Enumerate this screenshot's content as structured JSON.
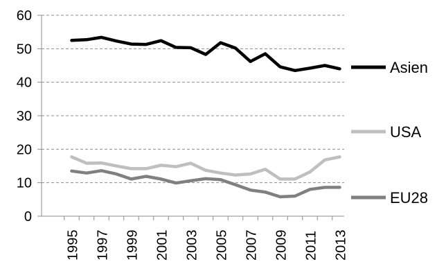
{
  "chart_data": {
    "type": "line",
    "title": "",
    "xlabel": "",
    "ylabel": "",
    "x": [
      1995,
      1996,
      1997,
      1998,
      1999,
      2000,
      2001,
      2002,
      2003,
      2004,
      2005,
      2006,
      2007,
      2008,
      2009,
      2010,
      2011,
      2012,
      2013
    ],
    "x_tick_labels": [
      "1995",
      "1997",
      "1999",
      "2001",
      "2003",
      "2005",
      "2007",
      "2009",
      "2011",
      "2013"
    ],
    "y_tick_labels": [
      "0",
      "10",
      "20",
      "30",
      "40",
      "50",
      "60"
    ],
    "ylim": [
      0,
      60
    ],
    "grid": "horizontal dashed",
    "legend": "right, labels at line ends",
    "series": [
      {
        "name": "Asien",
        "color": "#000000",
        "values": [
          52.5,
          52.7,
          53.4,
          52.3,
          51.4,
          51.3,
          52.4,
          50.4,
          50.3,
          48.3,
          51.8,
          50.2,
          46.2,
          48.5,
          44.6,
          43.5,
          44.2,
          45.0,
          44.0
        ]
      },
      {
        "name": "USA",
        "color": "#bfbfbf",
        "values": [
          17.7,
          15.8,
          15.9,
          15.0,
          14.2,
          14.2,
          15.2,
          14.8,
          15.8,
          13.7,
          12.9,
          12.3,
          12.6,
          14.0,
          11.1,
          11.1,
          13.2,
          16.8,
          17.7
        ]
      },
      {
        "name": "EU28",
        "color": "#808080",
        "values": [
          13.5,
          12.9,
          13.6,
          12.6,
          11.1,
          11.9,
          11.1,
          9.9,
          10.6,
          11.2,
          10.9,
          9.4,
          7.8,
          7.2,
          5.8,
          6.0,
          8.0,
          8.6,
          8.6
        ]
      }
    ]
  }
}
